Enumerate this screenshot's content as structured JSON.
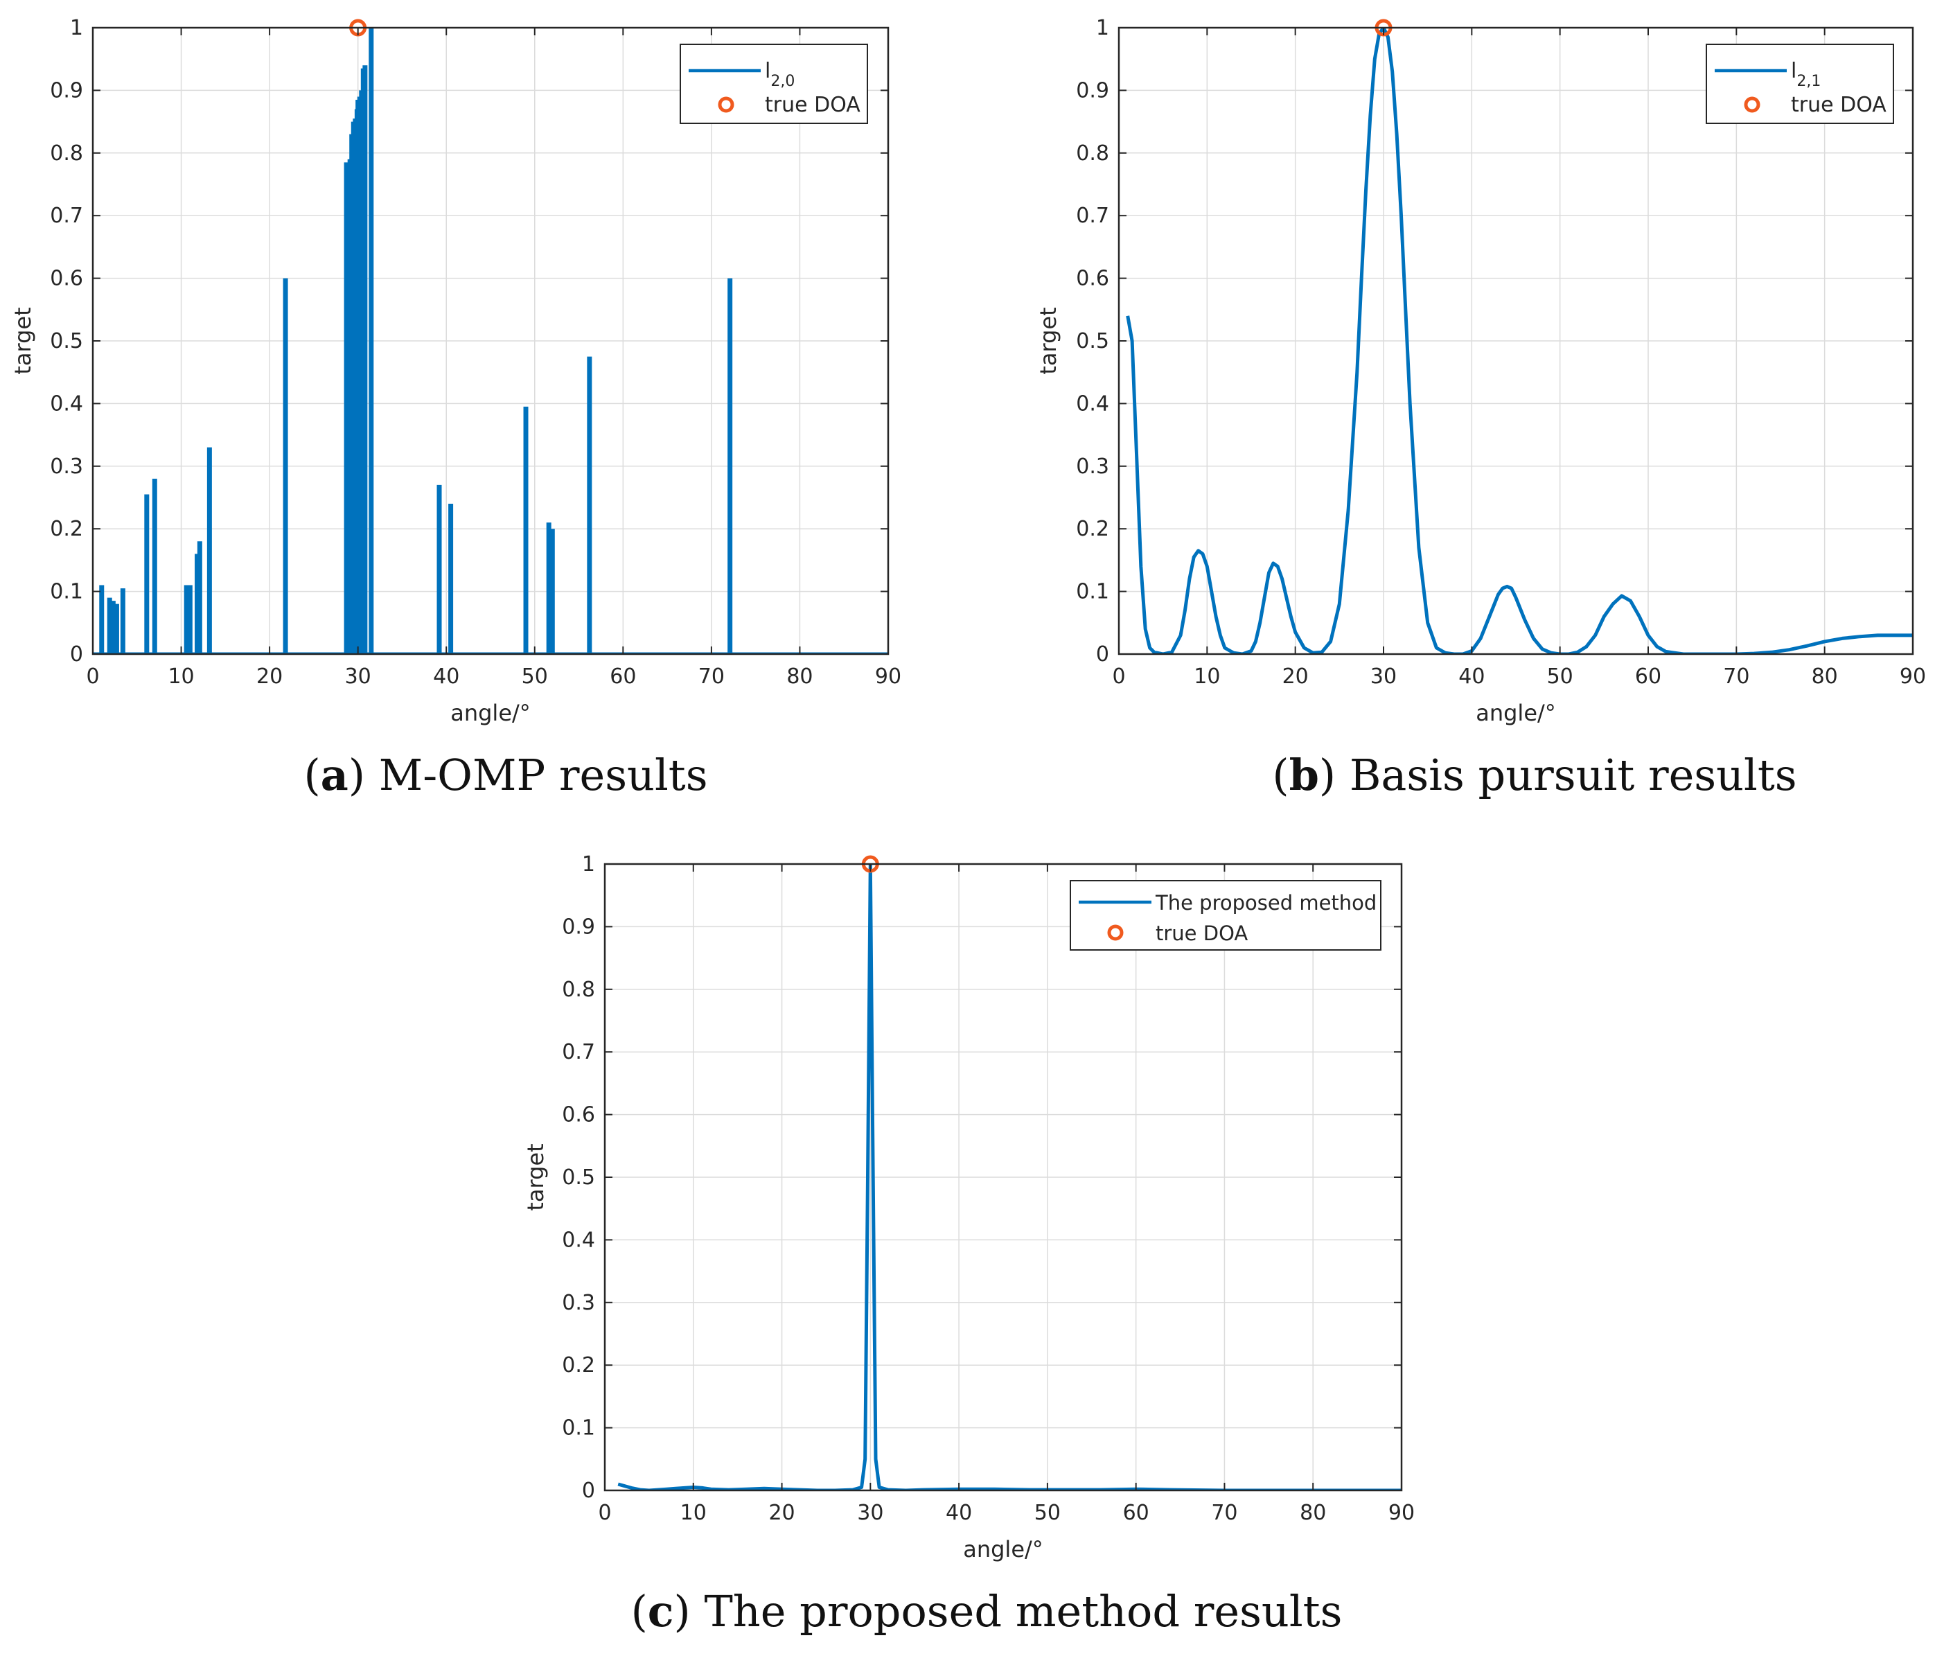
{
  "colors": {
    "line": "#0072BD",
    "marker": "#F05A1E",
    "grid": "#DCDCDC",
    "axis": "#262626"
  },
  "chart_data": [
    {
      "id": "a",
      "type": "line",
      "caption": {
        "letter": "a",
        "text": "M-OMP results"
      },
      "xlabel": "angle/°",
      "ylabel": "target",
      "xlim": [
        0,
        90
      ],
      "ylim": [
        0,
        1
      ],
      "xticks": [
        "0",
        "10",
        "20",
        "30",
        "40",
        "50",
        "60",
        "70",
        "80",
        "90"
      ],
      "yticks": [
        "0",
        "0.1",
        "0.2",
        "0.3",
        "0.4",
        "0.5",
        "0.6",
        "0.7",
        "0.8",
        "0.9",
        "1"
      ],
      "grid": true,
      "legend": {
        "position": "top-right",
        "entries": [
          {
            "name": "l",
            "sub": "2,0",
            "kind": "line"
          },
          {
            "name": "true DOA",
            "kind": "marker"
          }
        ]
      },
      "series": [
        {
          "name": "l2,0",
          "style": "spikes",
          "spikes": [
            [
              1.0,
              0.11
            ],
            [
              1.9,
              0.09
            ],
            [
              2.3,
              0.085
            ],
            [
              2.7,
              0.08
            ],
            [
              3.4,
              0.105
            ],
            [
              6.1,
              0.255
            ],
            [
              7.0,
              0.28
            ],
            [
              10.6,
              0.11
            ],
            [
              11.0,
              0.11
            ],
            [
              11.8,
              0.16
            ],
            [
              12.1,
              0.18
            ],
            [
              13.2,
              0.33
            ],
            [
              21.8,
              0.6
            ],
            [
              28.7,
              0.785
            ],
            [
              29.1,
              0.79
            ],
            [
              29.3,
              0.83
            ],
            [
              29.5,
              0.85
            ],
            [
              29.7,
              0.855
            ],
            [
              29.9,
              0.87
            ],
            [
              30.0,
              0.885
            ],
            [
              30.2,
              0.89
            ],
            [
              30.4,
              0.9
            ],
            [
              30.6,
              0.935
            ],
            [
              30.8,
              0.94
            ],
            [
              31.5,
              1.0
            ],
            [
              39.2,
              0.27
            ],
            [
              40.5,
              0.24
            ],
            [
              49.0,
              0.395
            ],
            [
              51.6,
              0.21
            ],
            [
              52.0,
              0.2
            ],
            [
              56.2,
              0.475
            ],
            [
              72.1,
              0.6
            ]
          ]
        }
      ],
      "markers": [
        [
          30,
          1
        ]
      ]
    },
    {
      "id": "b",
      "type": "line",
      "caption": {
        "letter": "b",
        "text": "Basis pursuit results"
      },
      "xlabel": "angle/°",
      "ylabel": "target",
      "xlim": [
        0,
        90
      ],
      "ylim": [
        0,
        1
      ],
      "xticks": [
        "0",
        "10",
        "20",
        "30",
        "40",
        "50",
        "60",
        "70",
        "80",
        "90"
      ],
      "yticks": [
        "0",
        "0.1",
        "0.2",
        "0.3",
        "0.4",
        "0.5",
        "0.6",
        "0.7",
        "0.8",
        "0.9",
        "1"
      ],
      "grid": true,
      "legend": {
        "position": "top-right",
        "entries": [
          {
            "name": "l",
            "sub": "2,1",
            "kind": "line"
          },
          {
            "name": "true DOA",
            "kind": "marker"
          }
        ]
      },
      "series": [
        {
          "name": "l2,1",
          "style": "curve",
          "x": [
            1,
            1.5,
            2,
            2.5,
            3,
            3.5,
            4,
            5,
            6,
            7,
            7.5,
            8,
            8.5,
            9,
            9.5,
            10,
            10.5,
            11,
            11.5,
            12,
            13,
            14,
            15,
            15.5,
            16,
            16.5,
            17,
            17.5,
            18,
            18.5,
            19,
            19.5,
            20,
            21,
            22,
            23,
            24,
            25,
            26,
            27,
            27.5,
            28,
            28.5,
            29,
            29.5,
            30,
            30.5,
            31,
            31.5,
            32,
            32.5,
            33,
            34,
            35,
            36,
            37,
            38,
            39,
            40,
            41,
            42,
            43,
            43.5,
            44,
            44.5,
            45,
            46,
            47,
            48,
            49,
            50,
            51,
            52,
            53,
            54,
            55,
            56,
            57,
            58,
            59,
            60,
            61,
            62,
            64,
            66,
            68,
            70,
            72,
            74,
            76,
            78,
            80,
            82,
            84,
            86,
            88,
            90
          ],
          "y": [
            0.54,
            0.5,
            0.32,
            0.14,
            0.04,
            0.01,
            0.003,
            0,
            0.003,
            0.03,
            0.07,
            0.12,
            0.155,
            0.165,
            0.16,
            0.14,
            0.1,
            0.06,
            0.03,
            0.01,
            0.002,
            0,
            0.005,
            0.02,
            0.05,
            0.09,
            0.13,
            0.145,
            0.14,
            0.12,
            0.09,
            0.06,
            0.035,
            0.01,
            0.002,
            0.003,
            0.02,
            0.08,
            0.23,
            0.45,
            0.6,
            0.74,
            0.86,
            0.95,
            0.99,
            1.0,
            0.985,
            0.93,
            0.83,
            0.7,
            0.55,
            0.4,
            0.17,
            0.05,
            0.01,
            0.002,
            0,
            0,
            0.005,
            0.025,
            0.06,
            0.095,
            0.105,
            0.108,
            0.105,
            0.09,
            0.055,
            0.025,
            0.008,
            0.002,
            0,
            0,
            0.003,
            0.012,
            0.03,
            0.06,
            0.08,
            0.093,
            0.085,
            0.06,
            0.03,
            0.012,
            0.004,
            0,
            0,
            0,
            0,
            0.001,
            0.003,
            0.007,
            0.013,
            0.02,
            0.025,
            0.028,
            0.03,
            0.03,
            0.03
          ]
        }
      ],
      "markers": [
        [
          30,
          1
        ]
      ]
    },
    {
      "id": "c",
      "type": "line",
      "caption": {
        "letter": "c",
        "text": "The proposed method results"
      },
      "xlabel": "angle/°",
      "ylabel": "target",
      "xlim": [
        0,
        90
      ],
      "ylim": [
        0,
        1
      ],
      "xticks": [
        "0",
        "10",
        "20",
        "30",
        "40",
        "50",
        "60",
        "70",
        "80",
        "90"
      ],
      "yticks": [
        "0",
        "0.1",
        "0.2",
        "0.3",
        "0.4",
        "0.5",
        "0.6",
        "0.7",
        "0.8",
        "0.9",
        "1"
      ],
      "grid": true,
      "legend": {
        "position": "top-right",
        "entries": [
          {
            "name": "The proposed method",
            "kind": "line"
          },
          {
            "name": "true DOA",
            "kind": "marker"
          }
        ]
      },
      "series": [
        {
          "name": "The proposed method",
          "style": "curve",
          "x": [
            1.5,
            2,
            3,
            4,
            5,
            6,
            7,
            8,
            9,
            10,
            11,
            12,
            14,
            16,
            18,
            20,
            22,
            24,
            26,
            28,
            29,
            29.4,
            29.7,
            30,
            30.3,
            30.6,
            31,
            32,
            34,
            36,
            40,
            44,
            48,
            52,
            56,
            60,
            64,
            70,
            80,
            90
          ],
          "y": [
            0.01,
            0.008,
            0.004,
            0.001,
            0,
            0.001,
            0.002,
            0.003,
            0.004,
            0.005,
            0.004,
            0.002,
            0.001,
            0.002,
            0.003,
            0.002,
            0.001,
            0,
            0,
            0.001,
            0.005,
            0.05,
            0.5,
            1.0,
            0.5,
            0.05,
            0.005,
            0.001,
            0,
            0.001,
            0.002,
            0.002,
            0.001,
            0.001,
            0.001,
            0.002,
            0.001,
            0,
            0,
            0
          ]
        }
      ],
      "markers": [
        [
          30,
          1
        ]
      ]
    }
  ]
}
